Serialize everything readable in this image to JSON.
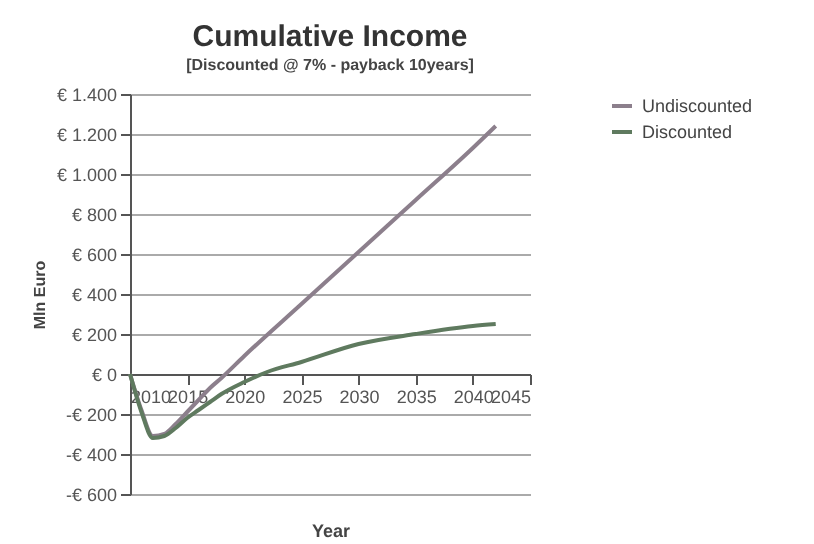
{
  "chart_data": {
    "type": "line",
    "title": "Cumulative Income",
    "subtitle": "[Discounted @ 7% - payback 10years]",
    "xlabel": "Year",
    "ylabel": "Mln Euro",
    "series": [
      {
        "name": "Undiscounted",
        "color": "#8c7f8c",
        "x": [
          2010,
          2011,
          2012,
          2013,
          2014,
          2015,
          2016,
          2017,
          2018,
          2020,
          2025,
          2030,
          2035,
          2040,
          2042
        ],
        "values": [
          0,
          -180,
          -310,
          -300,
          -250,
          -190,
          -130,
          -70,
          -20,
          90,
          350,
          610,
          870,
          1130,
          1240
        ]
      },
      {
        "name": "Discounted",
        "color": "#5f7a5f",
        "x": [
          2010,
          2011,
          2012,
          2013,
          2014,
          2015,
          2016,
          2017,
          2018,
          2020,
          2022,
          2025,
          2030,
          2035,
          2040,
          2042
        ],
        "values": [
          0,
          -190,
          -320,
          -310,
          -270,
          -220,
          -180,
          -140,
          -100,
          -40,
          10,
          60,
          150,
          200,
          240,
          250
        ]
      }
    ],
    "xlim": [
      2010,
      2045
    ],
    "xticks": [
      2010,
      2015,
      2020,
      2025,
      2030,
      2035,
      2040,
      2045
    ],
    "ylim": [
      -600,
      1400
    ],
    "yticks": [
      {
        "value": -600,
        "label": "-€ 600"
      },
      {
        "value": -400,
        "label": "-€ 400"
      },
      {
        "value": -200,
        "label": "-€ 200"
      },
      {
        "value": 0,
        "label": "€ 0"
      },
      {
        "value": 200,
        "label": "€ 200"
      },
      {
        "value": 400,
        "label": "€ 400"
      },
      {
        "value": 600,
        "label": "€ 600"
      },
      {
        "value": 800,
        "label": "€ 800"
      },
      {
        "value": 1000,
        "label": "€ 1.000"
      },
      {
        "value": 1200,
        "label": "€ 1.200"
      },
      {
        "value": 1400,
        "label": "€ 1.400"
      }
    ],
    "grid": "y",
    "legend": "right",
    "marker": "none",
    "line_style": "solid"
  }
}
